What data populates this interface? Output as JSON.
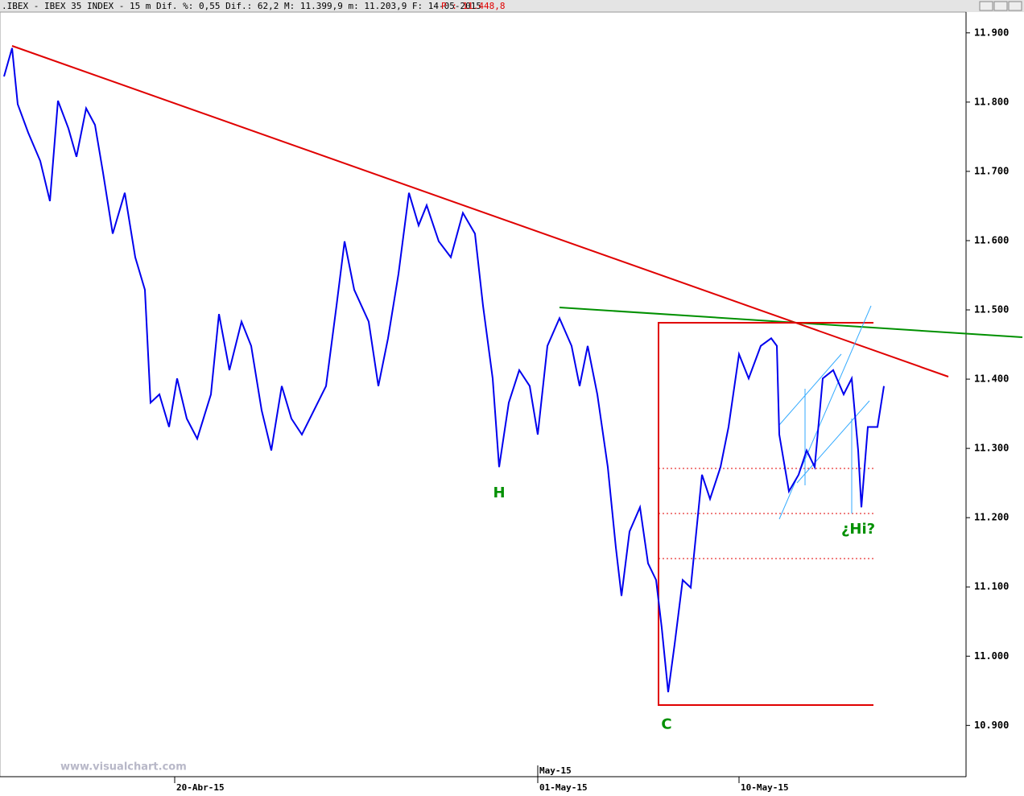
{
  "header": {
    "info": ".IBEX - IBEX 35 INDEX -  15 m Dif. %: 0,55 Dif.: 62,2 M: 11.399,9 m: 11.203,9 F: 14-05-2015",
    "price": "P : 11.448,8"
  },
  "watermark": "www.visualchart.com",
  "chart_data": {
    "type": "line",
    "series": [
      {
        "color": "#0000ee",
        "x": [
          5,
          15,
          22,
          35,
          50,
          62,
          72,
          85,
          95,
          107,
          118,
          128,
          140,
          155,
          168,
          180,
          187,
          198,
          210,
          220,
          232,
          245,
          262,
          272,
          285,
          300,
          312,
          325,
          337,
          350,
          362,
          375,
          390,
          405,
          418,
          428,
          440,
          458,
          470,
          482,
          495,
          508,
          520,
          530,
          545,
          560,
          575,
          590,
          600,
          612,
          620,
          632,
          645,
          658,
          668,
          680,
          695,
          710,
          720,
          730,
          742,
          755,
          765,
          772,
          782,
          795,
          805,
          815,
          822,
          830,
          838,
          848,
          858,
          866,
          872,
          882,
          895,
          905,
          918,
          930,
          945,
          958,
          965,
          968,
          980,
          992,
          1002,
          1012,
          1022,
          1035,
          1048,
          1058,
          1066,
          1070,
          1078,
          1090,
          1098
        ],
        "values": [
          11837,
          11878,
          11797,
          11756,
          11715,
          11657,
          11802,
          11762,
          11721,
          11791,
          11767,
          11698,
          11610,
          11669,
          11576,
          11529,
          11366,
          11378,
          11331,
          11401,
          11343,
          11314,
          11378,
          11494,
          11413,
          11483,
          11448,
          11355,
          11297,
          11390,
          11343,
          11320,
          11355,
          11390,
          11506,
          11599,
          11529,
          11483,
          11390,
          11459,
          11552,
          11669,
          11622,
          11651,
          11599,
          11576,
          11640,
          11610,
          11506,
          11401,
          11273,
          11366,
          11413,
          11390,
          11320,
          11448,
          11488,
          11448,
          11390,
          11448,
          11378,
          11273,
          11157,
          11087,
          11180,
          11215,
          11134,
          11110,
          11041,
          10948,
          11017,
          11110,
          11099,
          11192,
          11262,
          11227,
          11273,
          11331,
          11436,
          11401,
          11448,
          11459,
          11448,
          11320,
          11238,
          11262,
          11297,
          11273,
          11401,
          11413,
          11378,
          11401,
          11297,
          11215,
          11331,
          11331,
          11390
        ]
      }
    ],
    "xlim": [
      0,
      1200
    ],
    "xticks": [
      {
        "value": 217,
        "label": "20-Abr-15"
      },
      {
        "value": 668,
        "label": "01-May-15"
      },
      {
        "value": 918,
        "label": "10-May-15"
      }
    ],
    "x_period_labels": [
      {
        "value": 668,
        "label": "May-15"
      }
    ],
    "ylim": [
      10826,
      11930
    ],
    "yticks": [
      {
        "value": 11900,
        "label": "11.900"
      },
      {
        "value": 11800,
        "label": "11.800"
      },
      {
        "value": 11700,
        "label": "11.700"
      },
      {
        "value": 11600,
        "label": "11.600"
      },
      {
        "value": 11500,
        "label": "11.500"
      },
      {
        "value": 11400,
        "label": "11.400"
      },
      {
        "value": 11300,
        "label": "11.300"
      },
      {
        "value": 11200,
        "label": "11.200"
      },
      {
        "value": 11100,
        "label": "11.100"
      },
      {
        "value": 11000,
        "label": "11.000"
      },
      {
        "value": 10900,
        "label": "10.900"
      }
    ],
    "annotations": [
      {
        "text": "H",
        "x": 620,
        "y": 11235
      },
      {
        "text": "C",
        "x": 828,
        "y": 10901
      },
      {
        "text": "¿Hi?",
        "x": 1066,
        "y": 11183
      }
    ],
    "annotation_color": "#009000"
  }
}
